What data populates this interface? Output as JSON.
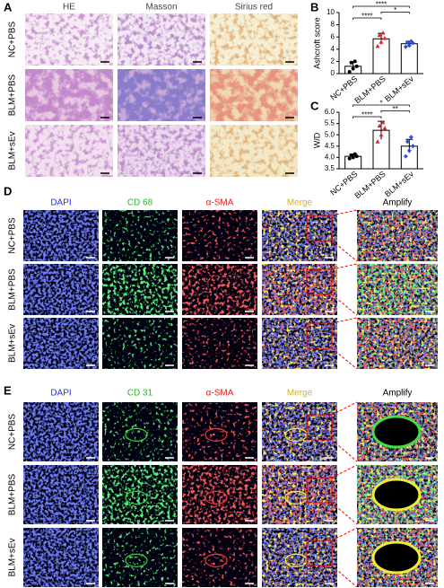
{
  "panel_a": {
    "label": "A",
    "columns": [
      "HE",
      "Masson",
      "Sirius red"
    ],
    "rows": [
      "NC+PBS",
      "BLM+PBS",
      "BLM+sEv"
    ]
  },
  "chart_data": [
    {
      "type": "dotbar",
      "label": "B",
      "ylabel": "Ashcroft score",
      "categories": [
        "NC+PBS",
        "BLM+PBS",
        "BLM+sEv"
      ],
      "colors": [
        "#000000",
        "#e0262b",
        "#2c4fd6"
      ],
      "values": [
        1.2,
        5.7,
        4.9
      ],
      "errors": [
        0.7,
        0.9,
        0.4
      ],
      "points": [
        [
          0.3,
          0.8,
          1.2,
          1.8,
          2.0
        ],
        [
          4.5,
          5.2,
          5.8,
          6.3,
          6.7
        ],
        [
          4.4,
          4.6,
          5.0,
          5.1,
          5.3
        ]
      ],
      "ylim": [
        0,
        10
      ],
      "yticks": [
        0,
        2,
        4,
        6,
        8,
        10
      ],
      "significance": [
        {
          "label": "****",
          "between": [
            0,
            2
          ]
        },
        {
          "label": "*",
          "between": [
            1,
            2
          ]
        },
        {
          "label": "****",
          "between": [
            0,
            1
          ]
        }
      ]
    },
    {
      "type": "dotbar",
      "label": "C",
      "ylabel": "W/D",
      "categories": [
        "NC+PBS",
        "BLM+PBS",
        "BLM+sEv"
      ],
      "colors": [
        "#000000",
        "#e0262b",
        "#2c4fd6"
      ],
      "values": [
        4.05,
        5.2,
        4.5
      ],
      "errors": [
        0.1,
        0.4,
        0.3
      ],
      "points": [
        [
          3.95,
          4.0,
          4.05,
          4.1,
          4.15
        ],
        [
          4.7,
          5.0,
          5.3,
          5.4,
          5.55
        ],
        [
          4.05,
          4.3,
          4.5,
          4.7,
          4.9
        ]
      ],
      "ylim": [
        3.5,
        6
      ],
      "yticks": [
        3.5,
        {
          "value": 4,
          "label": "4.0"
        },
        4.5,
        {
          "value": 5,
          "label": "5.0"
        },
        5.5,
        {
          "value": 6,
          "label": "6.0"
        }
      ],
      "significance": [
        {
          "label": "*",
          "between": [
            0,
            2
          ]
        },
        {
          "label": "**",
          "between": [
            1,
            2
          ]
        },
        {
          "label": "****",
          "between": [
            0,
            1
          ]
        }
      ]
    }
  ],
  "panel_d": {
    "label": "D",
    "columns": [
      "DAPI",
      "CD 68",
      "α-SMA",
      "Merge",
      "Amplify"
    ],
    "column_colors": [
      "#2233dd",
      "#22bb22",
      "#dd2222",
      "#d8b800",
      "#000000"
    ],
    "rows": [
      "NC+PBS",
      "BLM+PBS",
      "BLM+sEv"
    ]
  },
  "panel_e": {
    "label": "E",
    "columns": [
      "DAPI",
      "CD 31",
      "α-SMA",
      "Merge",
      "Amplify"
    ],
    "column_colors": [
      "#2233dd",
      "#22bb22",
      "#dd2222",
      "#d8b800",
      "#000000"
    ],
    "rows": [
      "NC+PBS",
      "BLM+PBS",
      "BLM+sEv"
    ]
  }
}
